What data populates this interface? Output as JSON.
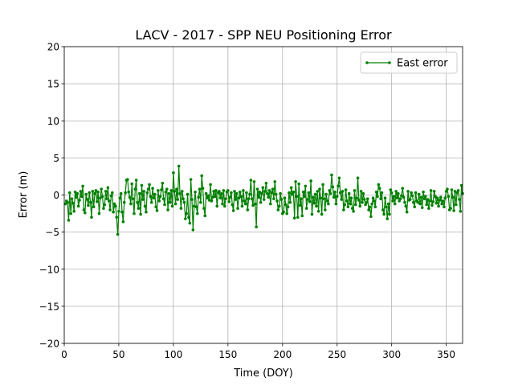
{
  "chart_data": {
    "type": "line",
    "title": "LACV - 2017 - SPP NEU Positioning Error",
    "xlabel": "Time (DOY)",
    "ylabel": "Error (m)",
    "xlim": [
      0,
      365
    ],
    "ylim": [
      -20,
      20
    ],
    "xticks": [
      0,
      50,
      100,
      150,
      200,
      250,
      300,
      350
    ],
    "yticks": [
      {
        "value": -20,
        "label": "−20"
      },
      {
        "value": -15,
        "label": "−15"
      },
      {
        "value": -10,
        "label": "−10"
      },
      {
        "value": -5,
        "label": "−5"
      },
      0,
      5,
      10,
      15,
      20
    ],
    "grid": true,
    "legend": "upper right",
    "x": [
      1,
      2,
      3,
      4,
      5,
      6,
      7,
      8,
      9,
      10,
      11,
      12,
      13,
      14,
      15,
      16,
      17,
      18,
      19,
      20,
      21,
      22,
      23,
      24,
      25,
      26,
      27,
      28,
      29,
      30,
      31,
      32,
      33,
      34,
      35,
      36,
      37,
      38,
      39,
      40,
      41,
      42,
      43,
      44,
      45,
      46,
      47,
      48,
      49,
      50,
      51,
      52,
      53,
      54,
      55,
      56,
      57,
      58,
      59,
      60,
      61,
      62,
      63,
      64,
      65,
      66,
      67,
      68,
      69,
      70,
      71,
      72,
      73,
      74,
      75,
      76,
      77,
      78,
      79,
      80,
      81,
      82,
      83,
      84,
      85,
      86,
      87,
      88,
      89,
      90,
      91,
      92,
      93,
      94,
      95,
      96,
      97,
      98,
      99,
      100,
      101,
      102,
      103,
      104,
      105,
      106,
      107,
      108,
      109,
      110,
      111,
      112,
      113,
      114,
      115,
      116,
      117,
      118,
      119,
      120,
      121,
      122,
      123,
      124,
      125,
      126,
      127,
      128,
      129,
      130,
      131,
      132,
      133,
      134,
      135,
      136,
      137,
      138,
      139,
      140,
      141,
      142,
      143,
      144,
      145,
      146,
      147,
      148,
      149,
      150,
      151,
      152,
      153,
      154,
      155,
      156,
      157,
      158,
      159,
      160,
      161,
      162,
      163,
      164,
      165,
      166,
      167,
      168,
      169,
      170,
      171,
      172,
      173,
      174,
      175,
      176,
      177,
      178,
      179,
      180,
      181,
      182,
      183,
      184,
      185,
      186,
      187,
      188,
      189,
      190,
      191,
      192,
      193,
      194,
      195,
      196,
      197,
      198,
      199,
      200,
      201,
      202,
      203,
      204,
      205,
      206,
      207,
      208,
      209,
      210,
      211,
      212,
      213,
      214,
      215,
      216,
      217,
      218,
      219,
      220,
      221,
      222,
      223,
      224,
      225,
      226,
      227,
      228,
      229,
      230,
      231,
      232,
      233,
      234,
      235,
      236,
      237,
      238,
      239,
      240,
      241,
      242,
      243,
      244,
      245,
      246,
      247,
      248,
      249,
      250,
      251,
      252,
      253,
      254,
      255,
      256,
      257,
      258,
      259,
      260,
      261,
      262,
      263,
      264,
      265,
      266,
      267,
      268,
      269,
      270,
      271,
      272,
      273,
      274,
      275,
      276,
      277,
      278,
      279,
      280,
      281,
      282,
      283,
      284,
      285,
      286,
      287,
      288,
      289,
      290,
      291,
      292,
      293,
      294,
      295,
      296,
      297,
      298,
      299,
      300,
      301,
      302,
      303,
      304,
      305,
      306,
      307,
      308,
      309,
      310,
      311,
      312,
      313,
      314,
      315,
      316,
      317,
      318,
      319,
      320,
      321,
      322,
      323,
      324,
      325,
      326,
      327,
      328,
      329,
      330,
      331,
      332,
      333,
      334,
      335,
      336,
      337,
      338,
      339,
      340,
      341,
      342,
      343,
      344,
      345,
      346,
      347,
      348,
      349,
      350,
      351,
      352,
      353,
      354,
      355,
      356,
      357,
      358,
      359,
      360,
      361,
      362,
      363,
      364,
      365
    ],
    "series": [
      {
        "name": "East error",
        "color": "#008000",
        "values": [
          -1.2,
          -0.8,
          -1.0,
          -3.4,
          0.3,
          -2.5,
          -0.5,
          -1.1,
          -2.2,
          0.4,
          -0.3,
          0.2,
          -1.5,
          -0.7,
          0.5,
          -0.2,
          1.2,
          -2.0,
          -2.4,
          0.1,
          -0.6,
          -1.4,
          0.3,
          -1.0,
          -3.0,
          0.5,
          -1.6,
          0.2,
          0.6,
          -0.9,
          0.4,
          -2.5,
          -0.4,
          0.8,
          -0.2,
          -1.8,
          -1.3,
          0.5,
          -0.5,
          1.0,
          -0.8,
          -2.0,
          -0.1,
          0.3,
          -2.3,
          -1.2,
          -1.5,
          -3.0,
          -5.3,
          -2.2,
          -0.4,
          0.2,
          -2.3,
          -3.6,
          -1.0,
          0.3,
          2.0,
          2.1,
          0.4,
          -0.3,
          -1.2,
          1.5,
          -0.5,
          -2.5,
          0.8,
          2.0,
          -1.0,
          -1.8,
          0.2,
          -2.6,
          1.3,
          -0.6,
          0.5,
          -1.5,
          -2.3,
          0.3,
          0.8,
          1.4,
          -0.2,
          -1.0,
          0.9,
          -0.4,
          0.1,
          -1.6,
          -2.1,
          0.6,
          -0.8,
          -0.2,
          0.7,
          1.6,
          -0.5,
          -1.3,
          0.4,
          0.8,
          -2.0,
          0.2,
          -1.0,
          0.6,
          -1.5,
          3.0,
          0.5,
          -1.2,
          0.8,
          -0.6,
          3.9,
          0.2,
          -1.8,
          0.5,
          -0.5,
          -1.0,
          -3.2,
          -2.5,
          0.1,
          -3.0,
          -3.8,
          2.1,
          -0.6,
          -4.7,
          -1.5,
          0.4,
          -1.6,
          -2.5,
          -0.3,
          0.8,
          -1.0,
          2.6,
          0.9,
          -1.8,
          -2.8,
          0.2,
          -0.4,
          -0.1,
          -0.7,
          1.4,
          -0.8,
          -0.3,
          0.5,
          -0.2,
          0.6,
          -1.5,
          0.3,
          0.5,
          -0.4,
          0.2,
          -1.2,
          0.6,
          -1.5,
          -0.5,
          0.4,
          0.6,
          -0.9,
          -0.3,
          0.3,
          -1.3,
          -2.1,
          0.5,
          -0.6,
          0.2,
          -1.8,
          -0.4,
          0.4,
          -0.2,
          -1.5,
          0.6,
          -0.8,
          -1.2,
          0.3,
          -2.0,
          -0.5,
          0.1,
          2.0,
          -0.5,
          -1.4,
          1.8,
          -1.2,
          -4.3,
          0.8,
          -0.3,
          0.4,
          -1.0,
          0.2,
          1.0,
          -0.6,
          0.5,
          1.6,
          0.2,
          -0.3,
          0.6,
          -1.2,
          0.3,
          0.8,
          -0.5,
          1.8,
          0.1,
          -0.8,
          -2.0,
          -1.5,
          0.2,
          -0.6,
          -2.5,
          -2.3,
          -0.4,
          -1.3,
          -2.5,
          -1.6,
          0.3,
          -1.0,
          1.0,
          0.1,
          0.4,
          -3.1,
          1.8,
          -0.2,
          -3.0,
          1.5,
          -1.4,
          -0.5,
          -2.8,
          0.4,
          -0.2,
          1.2,
          -1.8,
          -0.6,
          0.3,
          -0.9,
          1.9,
          -2.6,
          -0.3,
          -1.1,
          0.1,
          -1.5,
          0.5,
          -2.2,
          0.8,
          -0.4,
          -2.6,
          1.4,
          -0.5,
          -2.0,
          0.1,
          -0.8,
          -1.2,
          0.6,
          0.2,
          2.7,
          1.1,
          -0.3,
          0.4,
          -1.2,
          -0.2,
          1.2,
          2.3,
          0.3,
          -0.6,
          0.5,
          -2.0,
          -1.3,
          0.7,
          -0.8,
          -1.6,
          0.2,
          -1.2,
          -0.4,
          -1.8,
          -2.2,
          0.6,
          -1.3,
          -0.4,
          2.3,
          -0.7,
          -1.5,
          0.5,
          -1.0,
          0.2,
          -0.6,
          -1.3,
          -1.0,
          -0.5,
          -2.0,
          -1.6,
          -2.9,
          -1.2,
          -0.4,
          -0.8,
          -1.6,
          0.4,
          -0.2,
          1.4,
          0.9,
          -0.5,
          0.3,
          -2.0,
          -2.6,
          -0.4,
          -1.6,
          -3.2,
          -1.2,
          -2.6,
          0.7,
          0.3,
          -0.8,
          -0.2,
          -1.2,
          0.5,
          -0.4,
          0.2,
          -0.8,
          -0.5,
          -0.1,
          0.9,
          -0.3,
          -1.0,
          -1.5,
          -2.3,
          0.5,
          -0.7,
          -0.6,
          0.3,
          -0.1,
          -1.0,
          -1.6,
          0.3,
          -0.8,
          -1.0,
          0.1,
          -1.2,
          -0.3,
          -1.7,
          0.4,
          -0.5,
          -0.2,
          -1.3,
          -0.6,
          -1.8,
          -0.8,
          0.6,
          -1.4,
          -0.9,
          0.5,
          -0.2,
          -1.1,
          -0.4,
          -1.5,
          -0.7,
          -0.3,
          -1.2,
          -0.8,
          -1.6,
          -0.4,
          0.5,
          0.8,
          -0.2,
          -2.0,
          -1.8,
          0.7,
          -0.3,
          -2.1,
          0.5,
          -1.3,
          0.3,
          0.6,
          -0.6,
          -2.2,
          1.3,
          0.2
        ]
      }
    ]
  }
}
